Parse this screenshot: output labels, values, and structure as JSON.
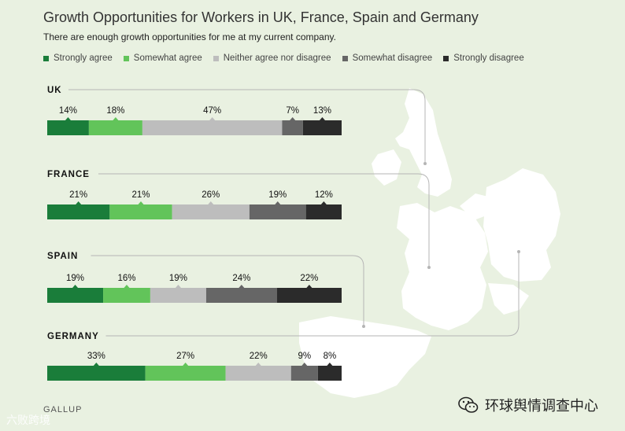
{
  "title": "Growth Opportunities for Workers in UK, France, Spain and Germany",
  "subtitle": "There are enough growth opportunities for me at my current company.",
  "source": "GALLUP",
  "watermark_left": "六败跨境",
  "watermark_right": "环球舆情调查中心",
  "colors": {
    "background": "#e9f1e1",
    "strongly_agree": "#1a7d3a",
    "somewhat_agree": "#62c45a",
    "neither": "#bdbdbd",
    "somewhat_disagree": "#666666",
    "strongly_disagree": "#2b2b2b",
    "map": "#ffffff",
    "connector": "#b5b5b5"
  },
  "chart_data": {
    "type": "bar",
    "orientation": "horizontal-stacked-100",
    "title": "Growth Opportunities for Workers in UK, France, Spain and Germany",
    "subtitle": "There are enough growth opportunities for me at my current company.",
    "categories": [
      "UK",
      "FRANCE",
      "SPAIN",
      "GERMANY"
    ],
    "series": [
      {
        "name": "Strongly agree",
        "values": [
          14,
          21,
          19,
          33
        ]
      },
      {
        "name": "Somewhat agree",
        "values": [
          18,
          21,
          16,
          27
        ]
      },
      {
        "name": "Neither agree nor disagree",
        "values": [
          47,
          26,
          19,
          22
        ]
      },
      {
        "name": "Somewhat disagree",
        "values": [
          7,
          19,
          24,
          9
        ]
      },
      {
        "name": "Strongly disagree",
        "values": [
          13,
          12,
          22,
          8
        ]
      }
    ],
    "value_labels": [
      [
        "14%",
        "18%",
        "47%",
        "7%",
        "13%"
      ],
      [
        "21%",
        "21%",
        "26%",
        "19%",
        "12%"
      ],
      [
        "19%",
        "16%",
        "19%",
        "24%",
        "22%"
      ],
      [
        "33%",
        "27%",
        "22%",
        "9%",
        "8%"
      ]
    ],
    "legend_position": "top-left",
    "grid": false
  }
}
